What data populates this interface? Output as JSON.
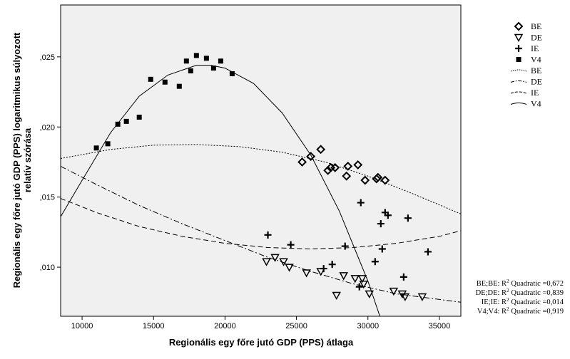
{
  "chart_data": {
    "type": "scatter",
    "xlabel": "Regionális egy főre jutó GDP (PPS) átlaga",
    "ylabel": "Regionális egy főre jutó GDP (PPS) logaritmikus súlyozott relatív szórása",
    "xlim": [
      8500,
      36500
    ],
    "ylim": [
      0.0065,
      0.0287
    ],
    "xticks": [
      10000,
      15000,
      20000,
      25000,
      30000,
      35000
    ],
    "xtick_labels": [
      "10000",
      "15000",
      "20000",
      "25000",
      "30000",
      "35000"
    ],
    "yticks": [
      0.01,
      0.015,
      0.02,
      0.025
    ],
    "ytick_labels": [
      ",010",
      ",015",
      ",020",
      ",025"
    ],
    "grid": false,
    "legend_position": "right",
    "series": [
      {
        "name": "BE",
        "marker": "diamond",
        "x": [
          25400,
          26000,
          26700,
          27200,
          27400,
          27700,
          28500,
          28600,
          29300,
          29800,
          30600,
          30700,
          31200
        ],
        "y": [
          0.0175,
          0.0179,
          0.0184,
          0.0169,
          0.0171,
          0.0171,
          0.0165,
          0.0172,
          0.0173,
          0.0162,
          0.0163,
          0.0164,
          0.0162
        ]
      },
      {
        "name": "DE",
        "marker": "triangle-down",
        "x": [
          22900,
          23500,
          24100,
          24500,
          25700,
          26700,
          27800,
          28300,
          29100,
          29600,
          29700,
          30100,
          31800,
          32400,
          32600,
          33800
        ],
        "y": [
          0.0104,
          0.0107,
          0.0104,
          0.01,
          0.0096,
          0.0097,
          0.008,
          0.0094,
          0.0092,
          0.0092,
          0.0088,
          0.0081,
          0.0083,
          0.0081,
          0.0079,
          0.0079
        ]
      },
      {
        "name": "IE",
        "marker": "plus",
        "x": [
          23000,
          24600,
          26900,
          27500,
          28400,
          29400,
          29500,
          30500,
          30900,
          31000,
          31200,
          31400,
          32500,
          32800,
          34200
        ],
        "y": [
          0.0123,
          0.0116,
          0.0099,
          0.0102,
          0.0115,
          0.0086,
          0.0146,
          0.0104,
          0.0131,
          0.0113,
          0.0139,
          0.0137,
          0.0093,
          0.0135,
          0.0111
        ]
      },
      {
        "name": "V4",
        "marker": "square",
        "x": [
          11000,
          11800,
          12500,
          13100,
          14000,
          14800,
          15800,
          16800,
          17300,
          17600,
          18000,
          18700,
          19200,
          19700,
          20500
        ],
        "y": [
          0.0185,
          0.0188,
          0.0202,
          0.0204,
          0.0207,
          0.0234,
          0.0232,
          0.0229,
          0.0247,
          0.024,
          0.0251,
          0.0249,
          0.0242,
          0.0247,
          0.0238
        ]
      }
    ],
    "fit_lines": [
      {
        "name": "BE",
        "style": "dotted",
        "points": [
          [
            8500,
            0.01775
          ],
          [
            12000,
            0.0184
          ],
          [
            15000,
            0.0187
          ],
          [
            18000,
            0.01875
          ],
          [
            21000,
            0.0186
          ],
          [
            24000,
            0.0182
          ],
          [
            27000,
            0.0175
          ],
          [
            30000,
            0.0165
          ],
          [
            33000,
            0.0153
          ],
          [
            36500,
            0.0138
          ]
        ]
      },
      {
        "name": "DE",
        "style": "dash-dot",
        "points": [
          [
            8500,
            0.0172
          ],
          [
            11000,
            0.0159
          ],
          [
            14000,
            0.0144
          ],
          [
            17000,
            0.0131
          ],
          [
            20000,
            0.0119
          ],
          [
            23000,
            0.0107
          ],
          [
            26000,
            0.0097
          ],
          [
            29000,
            0.0088
          ],
          [
            32000,
            0.0081
          ],
          [
            35000,
            0.0077
          ],
          [
            36500,
            0.0075
          ]
        ]
      },
      {
        "name": "IE",
        "style": "dashed",
        "points": [
          [
            8500,
            0.0149
          ],
          [
            11000,
            0.0139
          ],
          [
            14000,
            0.0129
          ],
          [
            17000,
            0.0122
          ],
          [
            20000,
            0.0117
          ],
          [
            23000,
            0.0114
          ],
          [
            26000,
            0.0113
          ],
          [
            29000,
            0.0114
          ],
          [
            32000,
            0.0117
          ],
          [
            35000,
            0.0122
          ],
          [
            36500,
            0.0126
          ]
        ]
      },
      {
        "name": "V4",
        "style": "solid",
        "points": [
          [
            8500,
            0.0136
          ],
          [
            10000,
            0.0162
          ],
          [
            12000,
            0.0196
          ],
          [
            14000,
            0.0222
          ],
          [
            16000,
            0.0237
          ],
          [
            18000,
            0.0244
          ],
          [
            19000,
            0.0244
          ],
          [
            20000,
            0.0242
          ],
          [
            22000,
            0.0231
          ],
          [
            24000,
            0.021
          ],
          [
            26000,
            0.018
          ],
          [
            28000,
            0.014
          ],
          [
            30000,
            0.009
          ],
          [
            31000,
            0.006
          ],
          [
            32000,
            0.003
          ]
        ]
      }
    ],
    "r2": [
      {
        "group": "BE;BE:",
        "text": " Quadratic =0,672"
      },
      {
        "group": "DE;DE:",
        "text": " Quadratic =0,839"
      },
      {
        "group": "IE;IE:",
        "text": " Quadratic =0,014"
      },
      {
        "group": "V4;V4:",
        "text": " Quadratic =0,919"
      }
    ],
    "r2_symbol": "R",
    "r2_power": "2"
  }
}
